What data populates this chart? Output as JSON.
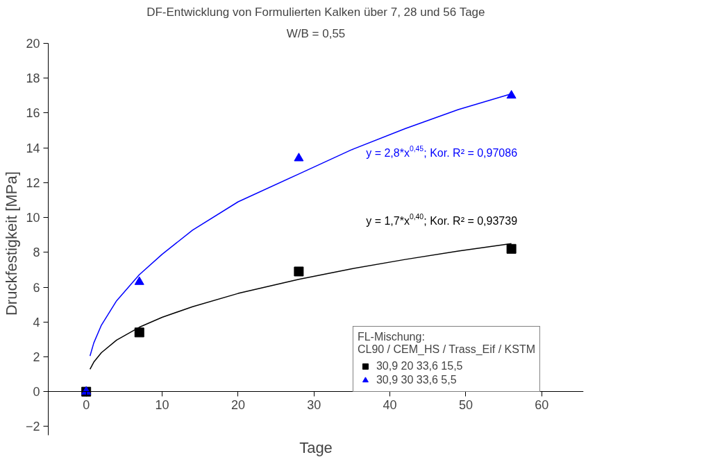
{
  "chart_data": {
    "type": "scatter",
    "title": "DF-Entwicklung von Formulierten Kalken über 7, 28 und 56 Tage",
    "subtitle": "W/B = 0,55",
    "xlabel": "Tage",
    "ylabel": "Druckfestigkeit   [MPa]",
    "legend_title": "FL-Mischung:\nCL90 / CEM_HS / Trass_Eif / KSTM",
    "legend": "bottom right",
    "grid": false,
    "xlim": [
      -5,
      65.5
    ],
    "ylim": [
      -2.5,
      20
    ],
    "xticks": [
      0,
      10,
      20,
      30,
      40,
      50,
      60
    ],
    "yticks": [
      -2,
      0,
      2,
      4,
      6,
      8,
      10,
      12,
      14,
      16,
      18,
      20
    ],
    "series": [
      {
        "name": "30,9 20 33,6 15,5",
        "marker": "square",
        "color": "#000000",
        "x": [
          0,
          7,
          28,
          56
        ],
        "values": [
          0,
          3.4,
          6.9,
          8.2
        ]
      },
      {
        "name": "30,9 30 33,6 5,5",
        "marker": "triangle",
        "color": "#0000ff",
        "x": [
          0,
          7,
          28,
          56
        ],
        "values": [
          0,
          6.3,
          13.4,
          17.0
        ]
      },
      {
        "type": "line",
        "color": "#000000",
        "x": [
          0.5,
          1,
          2,
          4,
          7,
          10,
          14,
          20,
          28,
          35,
          42,
          49,
          56
        ],
        "values": [
          1.29,
          1.7,
          2.24,
          2.96,
          3.7,
          4.27,
          4.88,
          5.64,
          6.45,
          7.06,
          7.59,
          8.07,
          8.5
        ]
      },
      {
        "type": "line",
        "color": "#0000ff",
        "x": [
          0.5,
          1,
          2,
          4,
          7,
          10,
          14,
          20,
          28,
          35,
          42,
          49,
          56
        ],
        "values": [
          2.05,
          2.8,
          3.82,
          5.22,
          6.72,
          7.89,
          9.27,
          10.9,
          12.5,
          13.9,
          15.1,
          16.2,
          17.1
        ]
      }
    ],
    "annotations": [
      "y = 1,7*x$^{0,40}$; Kor. R² = 0,93739",
      "y = 2,8*x$^{0,45}$; Kor. R² = 0,97086"
    ]
  }
}
